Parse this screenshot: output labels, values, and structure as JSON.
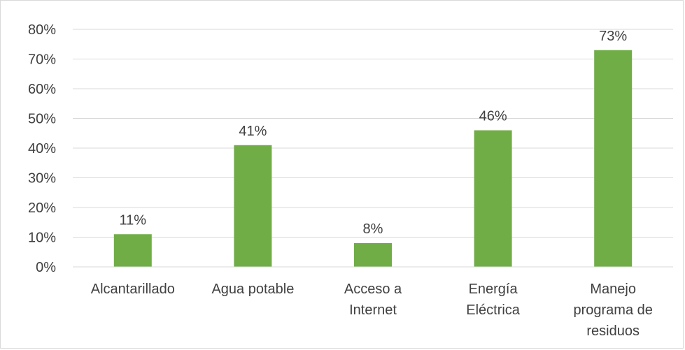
{
  "chart_data": {
    "type": "bar",
    "categories": [
      [
        "Alcantarillado"
      ],
      [
        "Agua potable"
      ],
      [
        "Acceso a",
        "Internet"
      ],
      [
        "Energía",
        "Eléctrica"
      ],
      [
        "Manejo",
        "programa de",
        "residuos"
      ]
    ],
    "values": [
      0.11,
      0.41,
      0.08,
      0.46,
      0.73
    ],
    "data_labels": [
      "11%",
      "41%",
      "8%",
      "46%",
      "73%"
    ],
    "yticks": [
      "0%",
      "10%",
      "20%",
      "30%",
      "40%",
      "50%",
      "60%",
      "70%",
      "80%"
    ],
    "ylim": [
      0,
      0.8
    ],
    "title": "",
    "xlabel": "",
    "ylabel": "",
    "grid": true,
    "legend": "none",
    "colors": {
      "bar": "#70ad47",
      "grid": "#d9d9d9",
      "text": "#404040"
    }
  }
}
